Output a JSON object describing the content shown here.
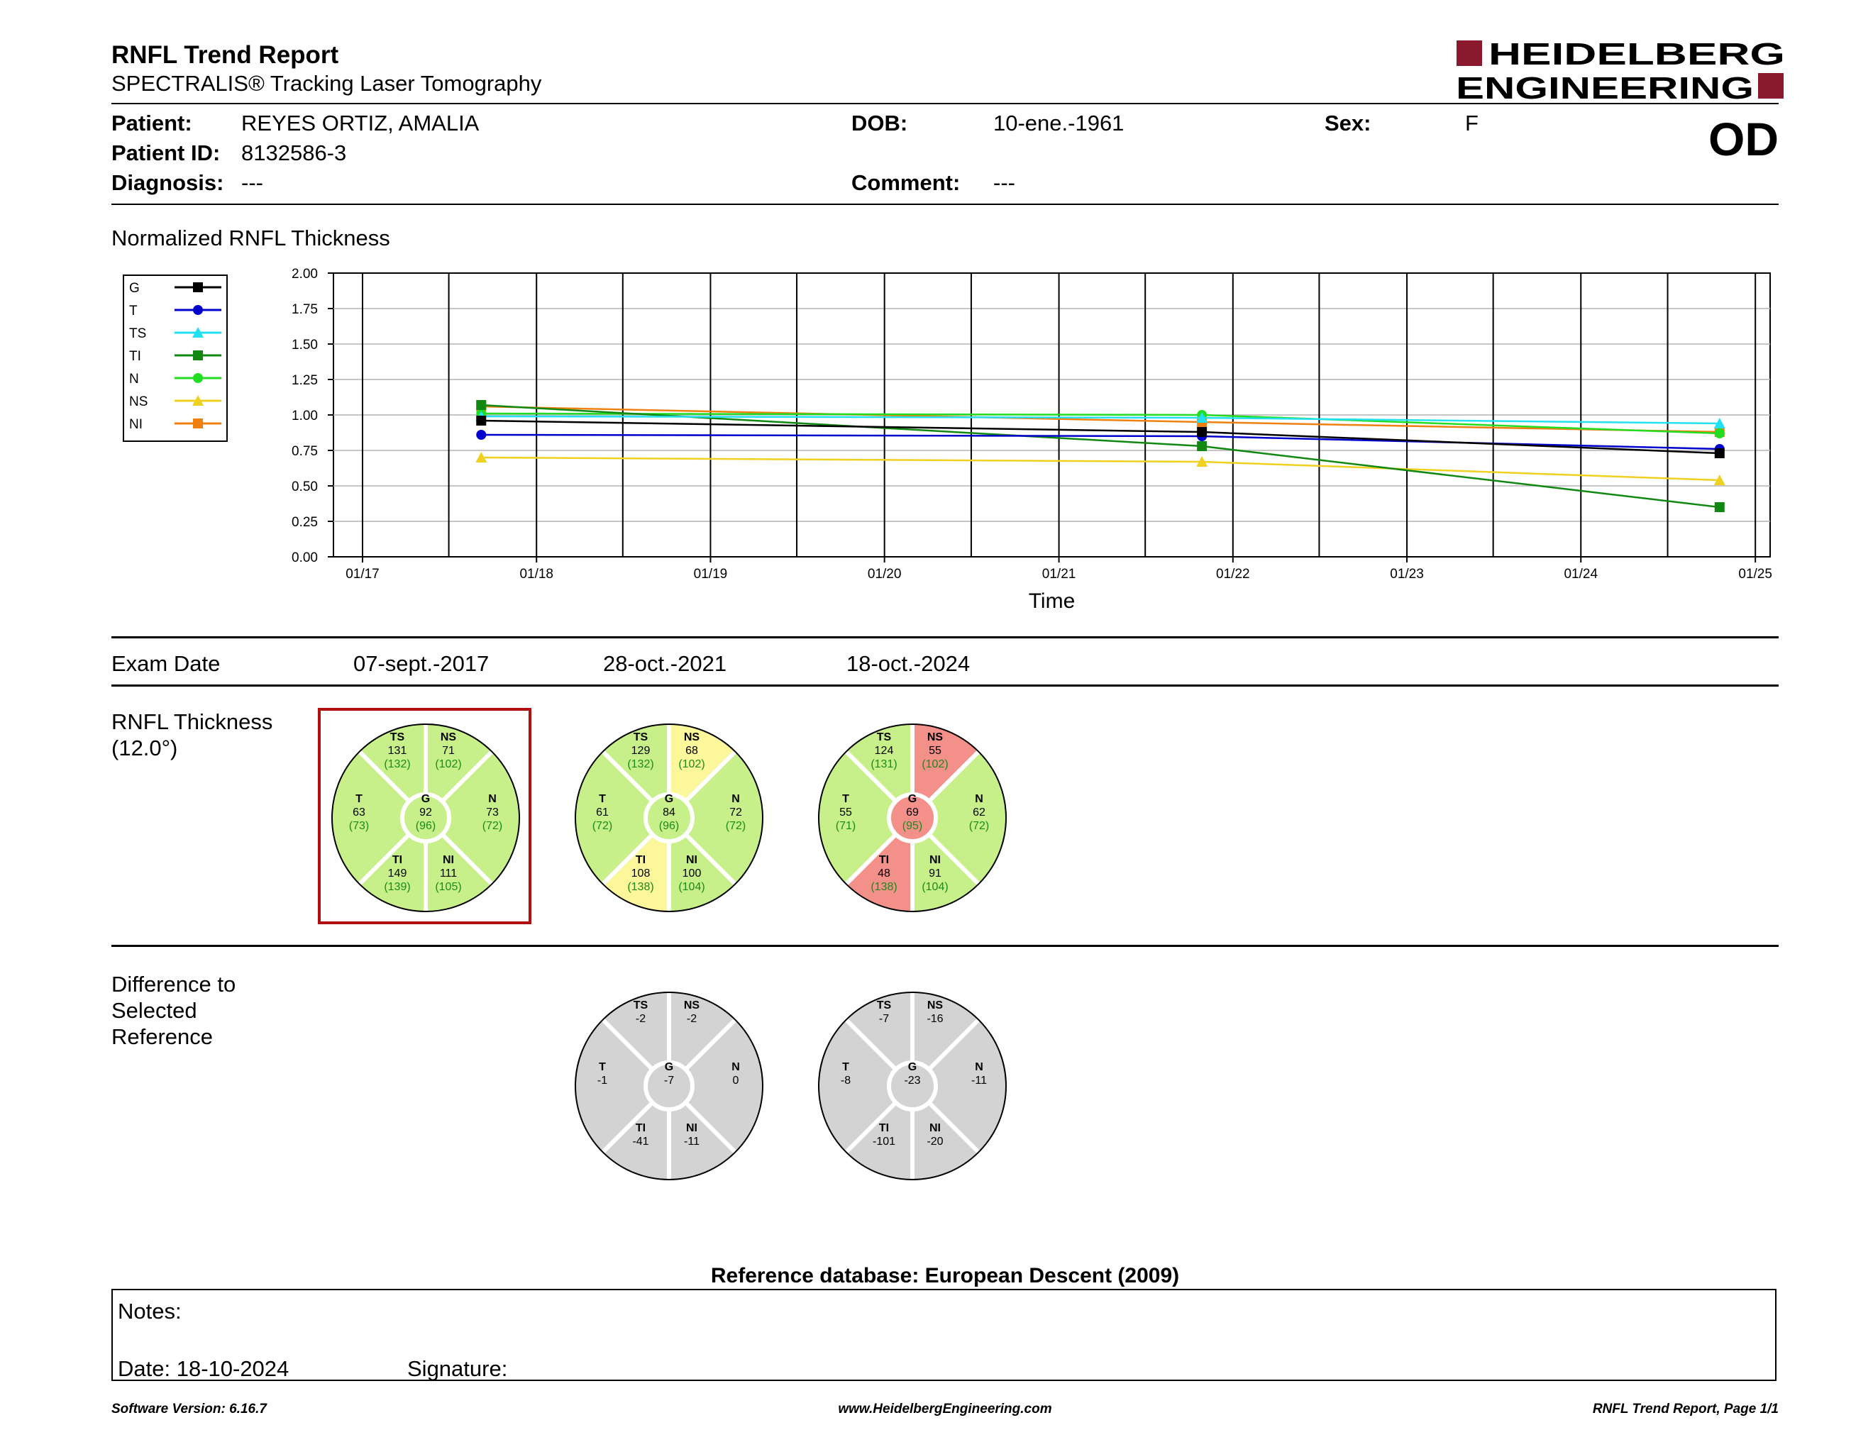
{
  "header": {
    "title": "RNFL Trend Report",
    "subtitle": "SPECTRALIS® Tracking Laser Tomography",
    "logo_line1": "HEIDELBERG",
    "logo_line2": "ENGINEERING",
    "logo_color": "#8b1a2e",
    "eye": "OD"
  },
  "patient": {
    "patient_label": "Patient:",
    "patient_value": "REYES ORTIZ, AMALIA",
    "id_label": "Patient ID:",
    "id_value": "8132586-3",
    "diagnosis_label": "Diagnosis:",
    "diagnosis_value": "---",
    "dob_label": "DOB:",
    "dob_value": "10-ene.-1961",
    "comment_label": "Comment:",
    "comment_value": "---",
    "sex_label": "Sex:",
    "sex_value": "F"
  },
  "chart_title": "Normalized RNFL Thickness",
  "chart_data": {
    "type": "line",
    "xlabel": "Time",
    "ylabel": "",
    "ylim": [
      0,
      2
    ],
    "yticks": [
      "0.00",
      "0.25",
      "0.50",
      "0.75",
      "1.00",
      "1.25",
      "1.50",
      "1.75",
      "2.00"
    ],
    "xlim": [
      "2016-11-01",
      "2025-02-01"
    ],
    "xticks": [
      {
        "label": "01/17",
        "date": "2017-01-01"
      },
      {
        "label": "01/18",
        "date": "2018-01-01"
      },
      {
        "label": "01/19",
        "date": "2019-01-01"
      },
      {
        "label": "01/20",
        "date": "2020-01-01"
      },
      {
        "label": "01/21",
        "date": "2021-01-01"
      },
      {
        "label": "01/22",
        "date": "2022-01-01"
      },
      {
        "label": "01/23",
        "date": "2023-01-01"
      },
      {
        "label": "01/24",
        "date": "2024-01-01"
      },
      {
        "label": "01/25",
        "date": "2025-01-01"
      }
    ],
    "x": [
      "2017-09-07",
      "2021-10-28",
      "2024-10-18"
    ],
    "grid": true,
    "legend_position": "left",
    "series": [
      {
        "name": "G",
        "color": "#000000",
        "marker": "square",
        "values": [
          0.96,
          0.88,
          0.73
        ]
      },
      {
        "name": "T",
        "color": "#0000cc",
        "marker": "circle",
        "values": [
          0.86,
          0.85,
          0.76
        ]
      },
      {
        "name": "TS",
        "color": "#22e0f0",
        "marker": "triangle",
        "values": [
          0.99,
          0.98,
          0.94
        ]
      },
      {
        "name": "TI",
        "color": "#118811",
        "marker": "square",
        "values": [
          1.07,
          0.78,
          0.35
        ]
      },
      {
        "name": "N",
        "color": "#22dd22",
        "marker": "circle",
        "values": [
          1.01,
          1.0,
          0.87
        ]
      },
      {
        "name": "NS",
        "color": "#f0d020",
        "marker": "triangle",
        "values": [
          0.7,
          0.67,
          0.54
        ]
      },
      {
        "name": "NI",
        "color": "#ee8010",
        "marker": "square",
        "values": [
          1.06,
          0.95,
          0.88
        ]
      }
    ]
  },
  "exam": {
    "label": "Exam Date",
    "dates": [
      "07-sept.-2017",
      "28-oct.-2021",
      "18-oct.-2024"
    ]
  },
  "thickness": {
    "label1": "RNFL Thickness",
    "label2": "(12.0°)",
    "colors": {
      "green": "#c8f08a",
      "yellow": "#fbf79a",
      "red": "#f4908a",
      "grey": "#d3d3d3"
    },
    "circles": [
      {
        "G": [
          "92",
          "(96)",
          "green"
        ],
        "TS": [
          "131",
          "(132)",
          "green"
        ],
        "NS": [
          "71",
          "(102)",
          "green"
        ],
        "T": [
          "63",
          "(73)",
          "green"
        ],
        "N": [
          "73",
          "(72)",
          "green"
        ],
        "TI": [
          "149",
          "(139)",
          "green"
        ],
        "NI": [
          "111",
          "(105)",
          "green"
        ]
      },
      {
        "G": [
          "84",
          "(96)",
          "green"
        ],
        "TS": [
          "129",
          "(132)",
          "green"
        ],
        "NS": [
          "68",
          "(102)",
          "yellow"
        ],
        "T": [
          "61",
          "(72)",
          "green"
        ],
        "N": [
          "72",
          "(72)",
          "green"
        ],
        "TI": [
          "108",
          "(138)",
          "yellow"
        ],
        "NI": [
          "100",
          "(104)",
          "green"
        ]
      },
      {
        "G": [
          "69",
          "(95)",
          "red"
        ],
        "TS": [
          "124",
          "(131)",
          "green"
        ],
        "NS": [
          "55",
          "(102)",
          "red"
        ],
        "T": [
          "55",
          "(71)",
          "green"
        ],
        "N": [
          "62",
          "(72)",
          "green"
        ],
        "TI": [
          "48",
          "(138)",
          "red"
        ],
        "NI": [
          "91",
          "(104)",
          "green"
        ]
      }
    ]
  },
  "difference": {
    "label1": "Difference to",
    "label2": "Selected",
    "label3": "Reference",
    "circles": [
      {
        "G": "-7",
        "TS": "-2",
        "NS": "-2",
        "T": "-1",
        "N": "0",
        "TI": "-41",
        "NI": "-11"
      },
      {
        "G": "-23",
        "TS": "-7",
        "NS": "-16",
        "T": "-8",
        "N": "-11",
        "TI": "-101",
        "NI": "-20"
      }
    ]
  },
  "reference_db": "Reference database: European Descent (2009)",
  "notes": {
    "notes_label": "Notes:",
    "date_label": "Date: 18-10-2024",
    "signature_label": "Signature:"
  },
  "footer": {
    "version": "Software Version: 6.16.7",
    "website": "www.HeidelbergEngineering.com",
    "page": "RNFL Trend Report, Page 1/1"
  }
}
